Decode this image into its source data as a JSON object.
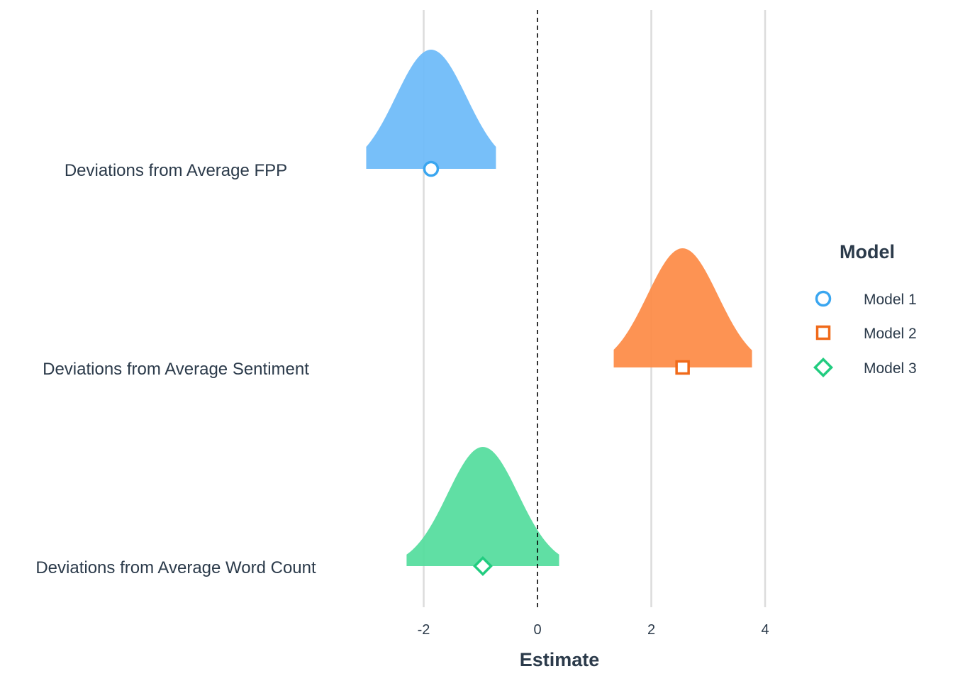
{
  "chart_data": {
    "type": "coefficient-density",
    "xlabel": "Estimate",
    "xlim": [
      -3.6,
      4.4
    ],
    "xticks": [
      -2,
      0,
      2,
      4
    ],
    "xtick_labels": [
      "-2",
      "0",
      "2",
      "4"
    ],
    "reference_line": 0,
    "grid": "vertical-major",
    "categories": [
      "Deviations from Average FPP",
      "Deviations from Average Sentiment",
      "Deviations from Average Word Count"
    ],
    "legend": {
      "title": "Model",
      "position": "right"
    },
    "series": [
      {
        "name": "Model 1",
        "category": "Deviations from Average FPP",
        "estimate": -1.87,
        "ci_low": -3.01,
        "ci_high": -0.73,
        "sd": 0.62,
        "marker": "circle",
        "color": "#3aa6f0",
        "fill": "#6bbaf8"
      },
      {
        "name": "Model 2",
        "category": "Deviations from Average Sentiment",
        "estimate": 2.55,
        "ci_low": 1.34,
        "ci_high": 3.77,
        "sd": 0.62,
        "marker": "square",
        "color": "#f06a1a",
        "fill": "#fd8a44"
      },
      {
        "name": "Model 3",
        "category": "Deviations from Average Word Count",
        "estimate": -0.96,
        "ci_low": -2.3,
        "ci_high": 0.38,
        "sd": 0.62,
        "marker": "diamond",
        "color": "#22cc80",
        "fill": "#52dc9c"
      }
    ]
  }
}
